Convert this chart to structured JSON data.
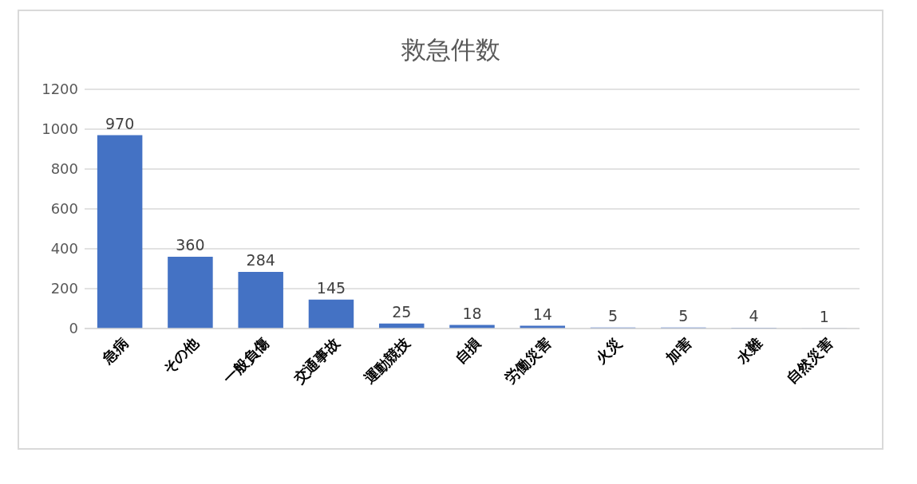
{
  "chart_data": {
    "type": "bar",
    "title": "救急件数",
    "categories": [
      "急病",
      "その他",
      "一般負傷",
      "交通事故",
      "運動競技",
      "自損",
      "労働災害",
      "火災",
      "加害",
      "水難",
      "自然災害"
    ],
    "values": [
      970,
      360,
      284,
      145,
      25,
      18,
      14,
      5,
      5,
      4,
      1
    ],
    "color": "#4472c4",
    "ylim": [
      0,
      1200
    ],
    "yticks": [
      0,
      200,
      400,
      600,
      800,
      1000,
      1200
    ],
    "grid": "y",
    "data_labels": true
  }
}
